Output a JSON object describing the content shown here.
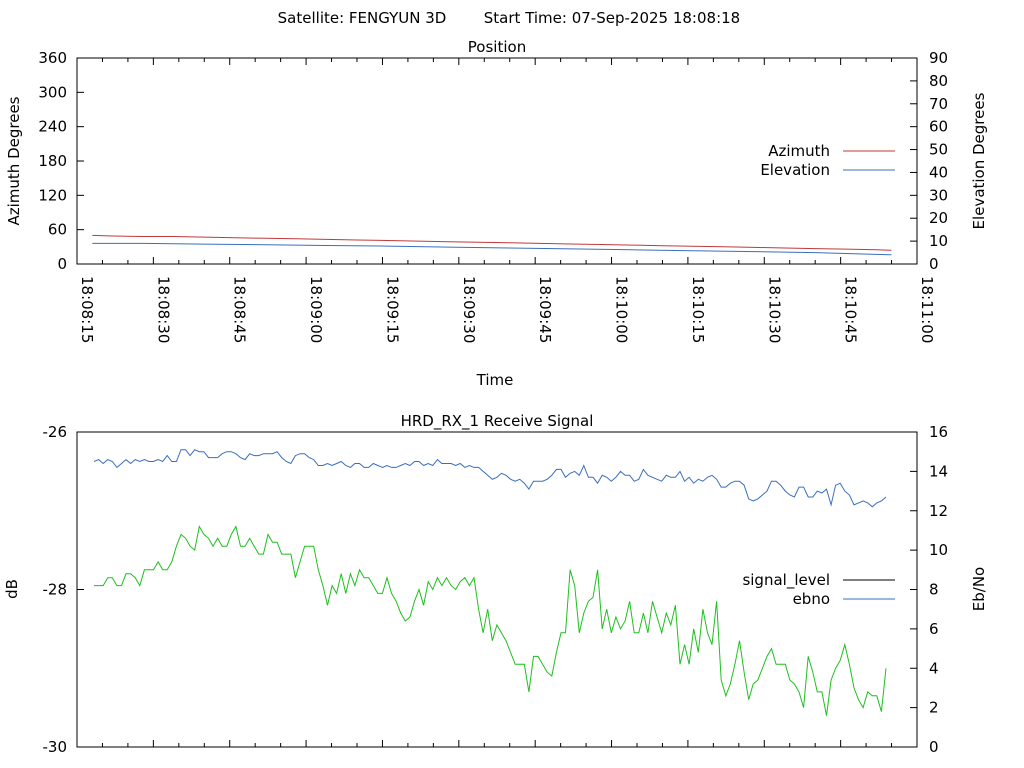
{
  "header": {
    "satellite_label": "Satellite: FENGYUN 3D",
    "start_time_label": "Start Time: 07-Sep-2025 18:08:18"
  },
  "chart_data": [
    {
      "type": "line",
      "title": "Position",
      "xlabel": "Time",
      "ylabel": "Azimuth Degrees",
      "y2label": "Elevation Degrees",
      "x_ticks": [
        "18:08:15",
        "18:08:30",
        "18:08:45",
        "18:09:00",
        "18:09:15",
        "18:09:30",
        "18:09:45",
        "18:10:00",
        "18:10:15",
        "18:10:30",
        "18:10:45",
        "18:11:00"
      ],
      "xlim_seconds": [
        0,
        165
      ],
      "ylim": [
        0,
        360
      ],
      "y_ticks": [
        0,
        60,
        120,
        180,
        240,
        300,
        360
      ],
      "y2lim": [
        0,
        90
      ],
      "y2_ticks": [
        0,
        10,
        20,
        30,
        40,
        50,
        60,
        70,
        80,
        90
      ],
      "legend_placement": "right",
      "grid": false,
      "series": [
        {
          "name": "Azimuth",
          "axis": "left",
          "color": "#c0393b",
          "x": [
            3,
            7,
            13,
            19,
            25,
            31,
            37,
            43,
            49,
            55,
            61,
            67,
            73,
            79,
            85,
            91,
            97,
            103,
            109,
            115,
            121,
            127,
            133,
            139,
            145,
            151,
            157,
            160
          ],
          "y": [
            50,
            49,
            48,
            48,
            47,
            46,
            45,
            44,
            43,
            42,
            41,
            40,
            39,
            38,
            37,
            36,
            35,
            34,
            33,
            32,
            31,
            30,
            29,
            28,
            27,
            26,
            25,
            24
          ]
        },
        {
          "name": "Elevation",
          "axis": "right",
          "color": "#3a6ebc",
          "x": [
            3,
            13,
            25,
            37,
            49,
            61,
            73,
            85,
            97,
            109,
            121,
            133,
            145,
            151,
            157,
            160
          ],
          "y": [
            9,
            9,
            8.7,
            8.4,
            8.1,
            7.8,
            7.4,
            7,
            6.6,
            6.2,
            5.8,
            5.4,
            5,
            4.6,
            4.2,
            4
          ]
        }
      ]
    },
    {
      "type": "line",
      "title": "HRD_RX_1 Receive Signal",
      "ylabel": "dB",
      "y2label": "Eb/No",
      "ylim": [
        -30,
        -26
      ],
      "y_ticks": [
        -30,
        -28,
        -26
      ],
      "y2lim": [
        0,
        16
      ],
      "y2_ticks": [
        0,
        2,
        4,
        6,
        8,
        10,
        12,
        14,
        16
      ],
      "x_minor_ticks": 33,
      "legend_placement": "right",
      "grid": false,
      "series": [
        {
          "name": "signal_level",
          "axis": "left",
          "color": "#000000",
          "y": []
        },
        {
          "name": "ebno",
          "axis": "right",
          "color": "#3a6ebc",
          "y": [
            14.5,
            14.6,
            14.4,
            14.6,
            14.5,
            14.2,
            14.4,
            14.6,
            14.4,
            14.6,
            14.5,
            14.6,
            14.5,
            14.5,
            14.6,
            14.5,
            14.8,
            14.5,
            14.5,
            15.1,
            15.1,
            14.8,
            15.1,
            15.0,
            15.0,
            14.7,
            14.7,
            14.7,
            14.9,
            15.0,
            15.0,
            14.9,
            14.7,
            14.6,
            14.9,
            14.8,
            14.8,
            14.9,
            14.9,
            14.9,
            15.0,
            14.7,
            14.5,
            14.4,
            14.8,
            14.9,
            14.9,
            14.7,
            14.6,
            14.3,
            14.3,
            14.4,
            14.3,
            14.4,
            14.5,
            14.3,
            14.2,
            14.4,
            14.4,
            14.2,
            14.2,
            14.4,
            14.3,
            14.2,
            14.3,
            14.2,
            14.2,
            14.3,
            14.4,
            14.3,
            14.5,
            14.5,
            14.3,
            14.4,
            14.3,
            14.6,
            14.4,
            14.4,
            14.4,
            14.3,
            14.4,
            14.2,
            14.3,
            14.2,
            14.2,
            14.0,
            13.8,
            13.6,
            13.7,
            13.9,
            13.8,
            13.6,
            13.5,
            13.6,
            13.4,
            13.1,
            13.5,
            13.5,
            13.5,
            13.6,
            13.8,
            14.1,
            14.1,
            13.7,
            13.9,
            14.0,
            13.8,
            14.3,
            13.7,
            13.7,
            13.4,
            13.8,
            13.7,
            13.5,
            13.7,
            14.0,
            13.8,
            13.8,
            13.5,
            13.6,
            14.1,
            13.8,
            13.7,
            13.6,
            13.5,
            13.8,
            13.7,
            13.7,
            14.0,
            13.5,
            13.7,
            13.4,
            13.6,
            13.5,
            13.7,
            13.8,
            13.6,
            13.2,
            13.2,
            13.4,
            13.5,
            13.5,
            13.3,
            12.6,
            12.5,
            12.6,
            12.8,
            13.0,
            13.5,
            13.5,
            13.3,
            13.0,
            12.8,
            12.7,
            13.2,
            13.2,
            12.7,
            12.7,
            13.0,
            12.9,
            13.1,
            12.3,
            13.3,
            13.4,
            13.0,
            12.8,
            12.3,
            12.4,
            12.5,
            12.4,
            12.2,
            12.4,
            12.5,
            12.7
          ]
        },
        {
          "name": "",
          "axis": "left",
          "color": "#1fbf1f",
          "y": [
            -27.95,
            -27.95,
            -27.95,
            -27.85,
            -27.85,
            -27.95,
            -27.95,
            -27.8,
            -27.8,
            -27.85,
            -27.95,
            -27.75,
            -27.75,
            -27.75,
            -27.65,
            -27.75,
            -27.75,
            -27.65,
            -27.45,
            -27.3,
            -27.35,
            -27.45,
            -27.5,
            -27.2,
            -27.3,
            -27.35,
            -27.45,
            -27.35,
            -27.45,
            -27.45,
            -27.3,
            -27.2,
            -27.45,
            -27.45,
            -27.35,
            -27.45,
            -27.55,
            -27.55,
            -27.3,
            -27.4,
            -27.4,
            -27.55,
            -27.55,
            -27.55,
            -27.85,
            -27.65,
            -27.45,
            -27.45,
            -27.45,
            -27.75,
            -27.95,
            -28.2,
            -27.95,
            -28.05,
            -27.8,
            -28.05,
            -27.8,
            -27.95,
            -27.75,
            -27.85,
            -27.85,
            -27.95,
            -28.05,
            -28.05,
            -27.85,
            -28.05,
            -28.15,
            -28.3,
            -28.4,
            -28.35,
            -28.15,
            -28.0,
            -28.2,
            -27.9,
            -28.0,
            -27.85,
            -27.95,
            -27.85,
            -27.95,
            -28.0,
            -27.9,
            -27.85,
            -27.95,
            -27.85,
            -28.25,
            -28.55,
            -28.25,
            -28.65,
            -28.45,
            -28.55,
            -28.65,
            -28.8,
            -28.95,
            -28.95,
            -28.95,
            -29.3,
            -28.85,
            -28.85,
            -28.95,
            -29.05,
            -29.1,
            -28.8,
            -28.55,
            -28.55,
            -27.75,
            -27.95,
            -28.55,
            -28.3,
            -28.15,
            -28.1,
            -27.75,
            -28.5,
            -28.25,
            -28.55,
            -28.35,
            -28.5,
            -28.4,
            -28.15,
            -28.55,
            -28.55,
            -28.3,
            -28.55,
            -28.15,
            -28.35,
            -28.55,
            -28.3,
            -28.45,
            -28.2,
            -28.95,
            -28.7,
            -28.95,
            -28.5,
            -28.8,
            -28.25,
            -28.55,
            -28.7,
            -28.15,
            -29.15,
            -29.35,
            -29.2,
            -28.95,
            -28.65,
            -29.05,
            -29.4,
            -29.2,
            -29.15,
            -29.0,
            -28.85,
            -28.75,
            -28.95,
            -28.95,
            -28.95,
            -29.15,
            -29.2,
            -29.3,
            -29.5,
            -28.85,
            -29.05,
            -29.3,
            -29.3,
            -29.6,
            -29.15,
            -29.0,
            -28.9,
            -28.7,
            -28.95,
            -29.25,
            -29.4,
            -29.5,
            -29.3,
            -29.35,
            -29.35,
            -29.55,
            -29.0
          ]
        }
      ]
    }
  ]
}
